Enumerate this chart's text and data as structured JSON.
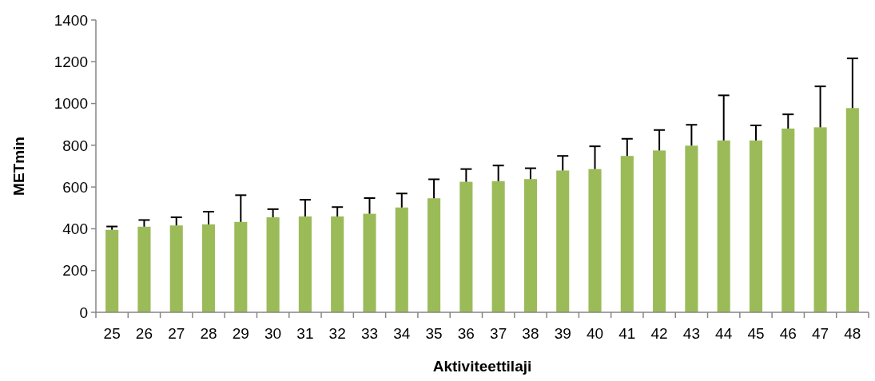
{
  "chart_data": {
    "type": "bar",
    "xlabel": "Aktiviteettilaji",
    "ylabel": "METmin",
    "categories": [
      "25",
      "26",
      "27",
      "28",
      "29",
      "30",
      "31",
      "32",
      "33",
      "34",
      "35",
      "36",
      "37",
      "38",
      "39",
      "40",
      "41",
      "42",
      "43",
      "44",
      "45",
      "46",
      "47",
      "48"
    ],
    "values": [
      395,
      410,
      416,
      421,
      433,
      455,
      459,
      459,
      472,
      502,
      546,
      625,
      628,
      638,
      679,
      686,
      749,
      775,
      798,
      823,
      823,
      880,
      886,
      978
    ],
    "errors": [
      [
        395,
        411
      ],
      [
        410,
        442
      ],
      [
        416,
        455
      ],
      [
        421,
        482
      ],
      [
        433,
        561
      ],
      [
        455,
        494
      ],
      [
        459,
        539
      ],
      [
        459,
        504
      ],
      [
        472,
        547
      ],
      [
        502,
        569
      ],
      [
        546,
        637
      ],
      [
        625,
        686
      ],
      [
        628,
        703
      ],
      [
        638,
        690
      ],
      [
        679,
        749
      ],
      [
        686,
        795
      ],
      [
        749,
        831
      ],
      [
        775,
        873
      ],
      [
        798,
        898
      ],
      [
        823,
        1039
      ],
      [
        823,
        895
      ],
      [
        880,
        948
      ],
      [
        886,
        1082
      ],
      [
        978,
        1216
      ]
    ],
    "color": "#9bbb59",
    "ylim": [
      0,
      1400
    ],
    "yticks": [
      0,
      200,
      400,
      600,
      800,
      1000,
      1200,
      1400
    ],
    "grid": false
  }
}
